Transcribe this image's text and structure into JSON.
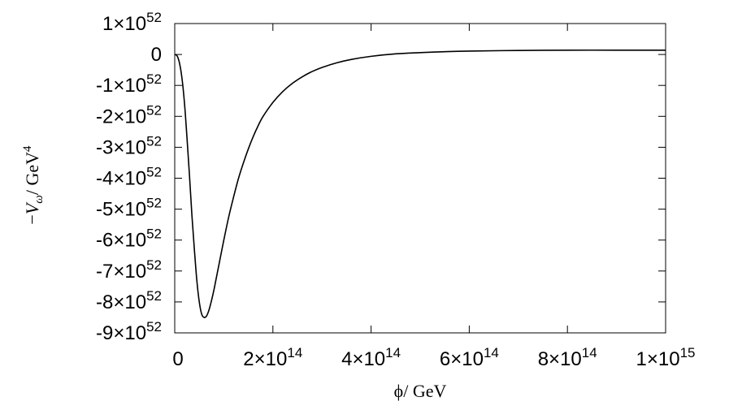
{
  "chart_data": {
    "type": "line",
    "title": "",
    "xlabel": "ϕ/ GeV",
    "ylabel": "−V_ω/ GeV^4",
    "ylabel_parts": {
      "minus": "−",
      "V": "V",
      "sub": "ω",
      "unit": "/ GeV",
      "sup": "4"
    },
    "xlim": [
      0,
      1000000000000000.0
    ],
    "ylim": [
      -9e+52,
      1e+52
    ],
    "grid": false,
    "xticks": [
      {
        "value": 0,
        "label": "0"
      },
      {
        "value": 200000000000000.0,
        "label": "2×10^14",
        "mant": "2×10",
        "exp": "14"
      },
      {
        "value": 400000000000000.0,
        "label": "4×10^14",
        "mant": "4×10",
        "exp": "14"
      },
      {
        "value": 600000000000000.0,
        "label": "6×10^14",
        "mant": "6×10",
        "exp": "14"
      },
      {
        "value": 800000000000000.0,
        "label": "8×10^14",
        "mant": "8×10",
        "exp": "14"
      },
      {
        "value": 1000000000000000.0,
        "label": "1×10^15",
        "mant": "1×10",
        "exp": "15"
      }
    ],
    "yticks": [
      {
        "value": 1e+52,
        "label": "1×10^52",
        "mant": "1×10",
        "exp": "52"
      },
      {
        "value": 0,
        "label": "0"
      },
      {
        "value": -1e+52,
        "label": "-1×10^52",
        "mant": "-1×10",
        "exp": "52"
      },
      {
        "value": -2e+52,
        "label": "-2×10^52",
        "mant": "-2×10",
        "exp": "52"
      },
      {
        "value": -3e+52,
        "label": "-3×10^52",
        "mant": "-3×10",
        "exp": "52"
      },
      {
        "value": -4e+52,
        "label": "-4×10^52",
        "mant": "-4×10",
        "exp": "52"
      },
      {
        "value": -5e+52,
        "label": "-5×10^52",
        "mant": "-5×10",
        "exp": "52"
      },
      {
        "value": -6e+52,
        "label": "-6×10^52",
        "mant": "-6×10",
        "exp": "52"
      },
      {
        "value": -7e+52,
        "label": "-7×10^52",
        "mant": "-7×10",
        "exp": "52"
      },
      {
        "value": -8e+52,
        "label": "-8×10^52",
        "mant": "-8×10",
        "exp": "52"
      },
      {
        "value": -9e+52,
        "label": "-9×10^52",
        "mant": "-9×10",
        "exp": "52"
      }
    ],
    "series": [
      {
        "x": [
          0,
          5000000000000.0,
          10000000000000.0,
          15000000000000.0,
          20000000000000.0,
          25000000000000.0,
          30000000000000.0,
          35000000000000.0,
          40000000000000.0,
          45000000000000.0,
          50000000000000.0,
          55000000000000.0,
          60000000000000.0,
          65000000000000.0,
          70000000000000.0,
          75000000000000.0,
          80000000000000.0,
          85000000000000.0,
          90000000000000.0,
          100000000000000.0,
          110000000000000.0,
          120000000000000.0,
          130000000000000.0,
          140000000000000.0,
          150000000000000.0,
          160000000000000.0,
          170000000000000.0,
          180000000000000.0,
          200000000000000.0,
          220000000000000.0,
          240000000000000.0,
          260000000000000.0,
          280000000000000.0,
          300000000000000.0,
          330000000000000.0,
          360000000000000.0,
          400000000000000.0,
          450000000000000.0,
          500000000000000.0,
          550000000000000.0,
          600000000000000.0,
          700000000000000.0,
          800000000000000.0,
          900000000000000.0,
          1000000000000000.0
        ],
        "y": [
          0,
          -5e+50,
          -3e+51,
          -8e+51,
          -1.6e+52,
          -2.7e+52,
          -3.9e+52,
          -5.2e+52,
          -6.3e+52,
          -7.3e+52,
          -8e+52,
          -8.4e+52,
          -8.5e+52,
          -8.45e+52,
          -8.25e+52,
          -7.95e+52,
          -7.6e+52,
          -7.2e+52,
          -6.8e+52,
          -6e+52,
          -5.25e+52,
          -4.6e+52,
          -4e+52,
          -3.5e+52,
          -3.05e+52,
          -2.65e+52,
          -2.3e+52,
          -2e+52,
          -1.55e+52,
          -1.2e+52,
          -9.3e+51,
          -7.2e+51,
          -5.5e+51,
          -4.2e+51,
          -2.7e+51,
          -1.6e+51,
          -6e+50,
          2e+50,
          6e+50,
          9e+50,
          1.1e+51,
          1.3e+51,
          1.4e+51,
          1.4e+51,
          1.4e+51
        ]
      }
    ]
  }
}
